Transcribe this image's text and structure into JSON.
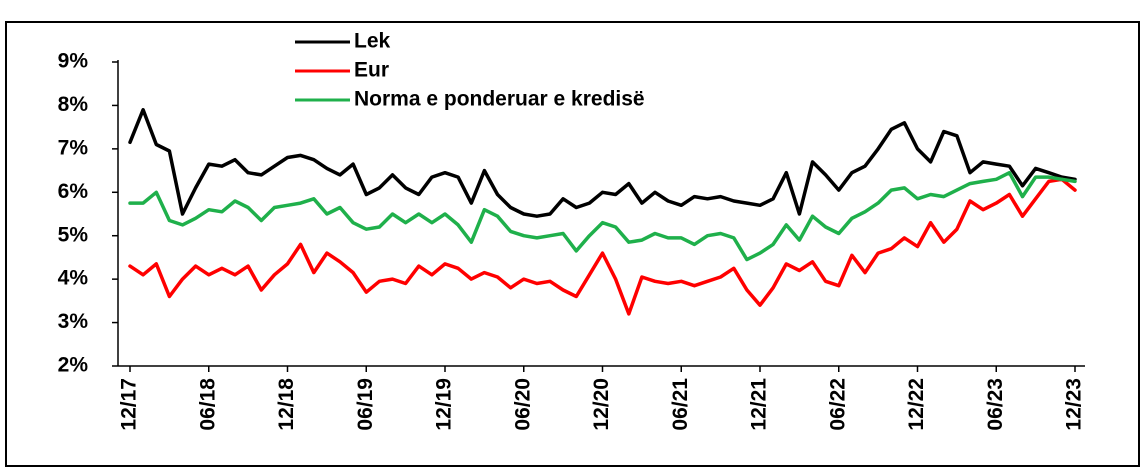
{
  "chart_data": {
    "type": "line",
    "categories": [
      "12/17",
      null,
      null,
      null,
      null,
      null,
      "06/18",
      null,
      null,
      null,
      null,
      null,
      "12/18",
      null,
      null,
      null,
      null,
      null,
      "06/19",
      null,
      null,
      null,
      null,
      null,
      "12/19",
      null,
      null,
      null,
      null,
      null,
      "06/20",
      null,
      null,
      null,
      null,
      null,
      "12/20",
      null,
      null,
      null,
      null,
      null,
      "06/21",
      null,
      null,
      null,
      null,
      null,
      "12/21",
      null,
      null,
      null,
      null,
      null,
      "06/22",
      null,
      null,
      null,
      null,
      null,
      "12/22",
      null,
      null,
      null,
      null,
      null,
      "06/23",
      null,
      null,
      null,
      null,
      null,
      "12/23"
    ],
    "series": [
      {
        "name": "Lek",
        "color": "#000000",
        "values": [
          7.15,
          7.9,
          7.1,
          6.95,
          5.5,
          6.1,
          6.65,
          6.6,
          6.75,
          6.45,
          6.4,
          6.6,
          6.8,
          6.85,
          6.75,
          6.55,
          6.4,
          6.65,
          5.95,
          6.1,
          6.4,
          6.1,
          5.95,
          6.35,
          6.45,
          6.35,
          5.75,
          6.5,
          5.95,
          5.65,
          5.5,
          5.45,
          5.5,
          5.85,
          5.65,
          5.75,
          6.0,
          5.95,
          6.2,
          5.75,
          6.0,
          5.8,
          5.7,
          5.9,
          5.85,
          5.9,
          5.8,
          5.75,
          5.7,
          5.85,
          6.45,
          5.5,
          6.7,
          6.4,
          6.05,
          6.45,
          6.6,
          7.0,
          7.45,
          7.6,
          7.0,
          6.7,
          7.4,
          7.3,
          6.45,
          6.7,
          6.65,
          6.6,
          6.15,
          6.55,
          6.45,
          6.35,
          6.3
        ]
      },
      {
        "name": "Eur",
        "color": "#ff0000",
        "values": [
          4.3,
          4.1,
          4.35,
          3.6,
          4.0,
          4.3,
          4.1,
          4.25,
          4.1,
          4.3,
          3.75,
          4.1,
          4.35,
          4.8,
          4.15,
          4.6,
          4.4,
          4.15,
          3.7,
          3.95,
          4.0,
          3.9,
          4.3,
          4.1,
          4.35,
          4.25,
          4.0,
          4.15,
          4.05,
          3.8,
          4.0,
          3.9,
          3.95,
          3.75,
          3.6,
          4.1,
          4.6,
          4.0,
          3.2,
          4.05,
          3.95,
          3.9,
          3.95,
          3.85,
          3.95,
          4.05,
          4.25,
          3.75,
          3.4,
          3.8,
          4.35,
          4.2,
          4.4,
          3.95,
          3.85,
          4.55,
          4.15,
          4.6,
          4.7,
          4.95,
          4.75,
          5.3,
          4.85,
          5.15,
          5.8,
          5.6,
          5.75,
          5.95,
          5.45,
          5.85,
          6.25,
          6.3,
          6.05
        ]
      },
      {
        "name": "Norma e ponderuar e kredisë",
        "color": "#1fb04b",
        "values": [
          5.75,
          5.75,
          6.0,
          5.35,
          5.25,
          5.4,
          5.6,
          5.55,
          5.8,
          5.65,
          5.35,
          5.65,
          5.7,
          5.75,
          5.85,
          5.5,
          5.65,
          5.3,
          5.15,
          5.2,
          5.5,
          5.3,
          5.5,
          5.3,
          5.5,
          5.25,
          4.85,
          5.6,
          5.45,
          5.1,
          5.0,
          4.95,
          5.0,
          5.05,
          4.65,
          5.0,
          5.3,
          5.2,
          4.85,
          4.9,
          5.05,
          4.95,
          4.95,
          4.8,
          5.0,
          5.05,
          4.95,
          4.45,
          4.6,
          4.8,
          5.25,
          4.9,
          5.45,
          5.2,
          5.05,
          5.4,
          5.55,
          5.75,
          6.05,
          6.1,
          5.85,
          5.95,
          5.9,
          6.05,
          6.2,
          6.25,
          6.3,
          6.45,
          5.9,
          6.35,
          6.35,
          6.3,
          6.25
        ]
      }
    ],
    "ylim": [
      2,
      9
    ],
    "yticks": [
      {
        "value": 2,
        "label": "2%"
      },
      {
        "value": 3,
        "label": "3%"
      },
      {
        "value": 4,
        "label": "4%"
      },
      {
        "value": 5,
        "label": "5%"
      },
      {
        "value": 6,
        "label": "6%"
      },
      {
        "value": 7,
        "label": "7%"
      },
      {
        "value": 8,
        "label": "8%"
      },
      {
        "value": 9,
        "label": "9%"
      }
    ]
  }
}
